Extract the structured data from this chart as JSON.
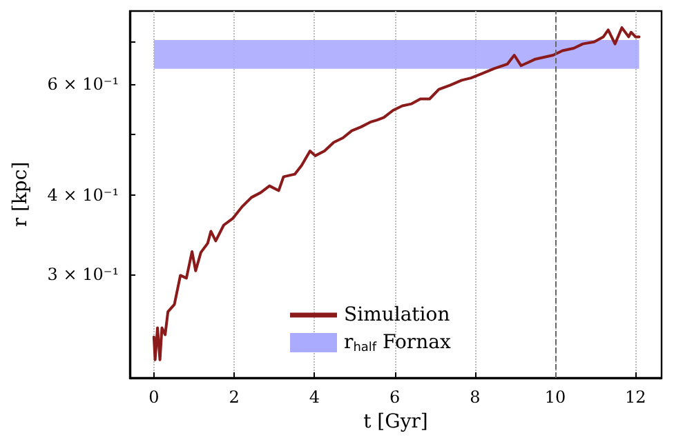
{
  "chart_data": {
    "type": "line",
    "xlabel": "t [Gyr]",
    "ylabel": "r [kpc]",
    "x": [
      0,
      0.03,
      0.09,
      0.15,
      0.2,
      0.28,
      0.35,
      0.51,
      0.66,
      0.81,
      0.95,
      1.04,
      1.17,
      1.34,
      1.42,
      1.54,
      1.74,
      1.97,
      2.2,
      2.43,
      2.66,
      2.88,
      3.11,
      3.23,
      3.51,
      3.68,
      3.89,
      4.02,
      4.25,
      4.48,
      4.71,
      4.93,
      5.16,
      5.39,
      5.56,
      5.73,
      5.96,
      6.19,
      6.42,
      6.64,
      6.87,
      7.1,
      7.38,
      7.67,
      7.9,
      8.18,
      8.47,
      8.81,
      8.98,
      9.15,
      9.49,
      9.72,
      9.95,
      10.18,
      10.46,
      10.69,
      10.97,
      11.2,
      11.32,
      11.49,
      11.66,
      11.83,
      11.89,
      12.0,
      12.09
    ],
    "series": [
      {
        "name": "Simulation",
        "color": "#8b1a1a",
        "values": [
          0.239,
          0.22,
          0.247,
          0.22,
          0.247,
          0.241,
          0.262,
          0.269,
          0.299,
          0.296,
          0.326,
          0.304,
          0.325,
          0.336,
          0.351,
          0.339,
          0.359,
          0.368,
          0.384,
          0.397,
          0.404,
          0.414,
          0.407,
          0.428,
          0.432,
          0.446,
          0.47,
          0.462,
          0.47,
          0.485,
          0.493,
          0.506,
          0.513,
          0.522,
          0.526,
          0.531,
          0.545,
          0.554,
          0.558,
          0.568,
          0.568,
          0.588,
          0.597,
          0.608,
          0.613,
          0.623,
          0.634,
          0.645,
          0.666,
          0.641,
          0.656,
          0.661,
          0.666,
          0.677,
          0.683,
          0.694,
          0.699,
          0.712,
          0.73,
          0.694,
          0.736,
          0.712,
          0.724,
          0.712,
          0.712
        ]
      }
    ],
    "xlim": [
      -0.6,
      12.65
    ],
    "xticks": [
      0,
      2,
      4,
      6,
      8,
      10,
      12
    ],
    "ylim": [
      0.206,
      0.782
    ],
    "yticks": [
      {
        "value": 0.3,
        "label": "3 × 10⁻¹"
      },
      {
        "value": 0.4,
        "label": "4 × 10⁻¹"
      },
      {
        "value": 0.5,
        "label": null
      },
      {
        "value": 0.6,
        "label": "6 × 10⁻¹"
      },
      {
        "value": 0.7,
        "label": null
      }
    ],
    "log": "y",
    "grid": "x",
    "legend": "bottom",
    "marker": "none",
    "line_style": "solid",
    "bands": [
      {
        "axis": "y",
        "from": 0.634,
        "to": 0.704,
        "label": "r$_{half}$ Fornax",
        "color": "#aaaaff"
      }
    ],
    "ref_lines": [
      {
        "axis": "x",
        "value": 10,
        "color": "#666666",
        "line_style": "dashed"
      }
    ]
  }
}
